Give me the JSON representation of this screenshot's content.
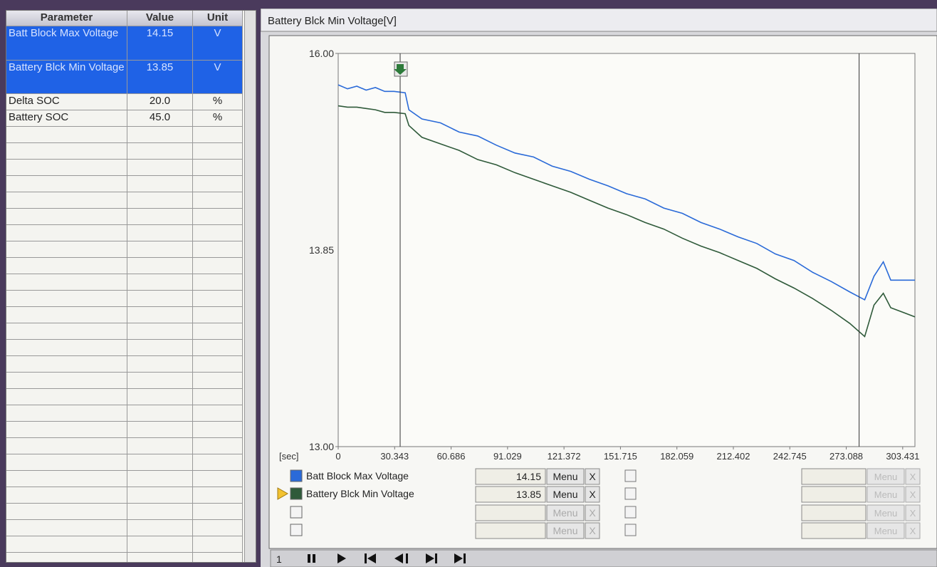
{
  "table": {
    "headers": [
      "Parameter",
      "Value",
      "Unit"
    ],
    "rows": [
      [
        "Batt Block Max Voltage",
        "14.15",
        "V"
      ],
      [
        "Battery Blck Min Voltage",
        "13.85",
        "V"
      ],
      [
        "Delta SOC",
        "20.0",
        "%"
      ],
      [
        "Battery SOC",
        "45.0",
        "%"
      ]
    ]
  },
  "ui": {
    "menu": "Menu",
    "close": "X",
    "frame_number": "1"
  },
  "chart_data": {
    "type": "line",
    "title": "Battery Blck Min Voltage[V]",
    "x_label": "[sec]",
    "xlim": [
      0,
      310
    ],
    "xticks": [
      0,
      30.343,
      60.686,
      91.029,
      121.372,
      151.715,
      182.059,
      212.402,
      242.745,
      273.088,
      303.431
    ],
    "ylim": [
      13,
      16
    ],
    "yticks": [
      {
        "value": 16,
        "label": "16.00"
      },
      {
        "value": 13,
        "label": "13.00"
      }
    ],
    "y_mid_label": "13.85",
    "cursors": [
      33.3,
      280
    ],
    "grid": false,
    "x": [
      0,
      5,
      10,
      15,
      20,
      25,
      30,
      36,
      38,
      45,
      55,
      65,
      75,
      85,
      95,
      105,
      115,
      125,
      135,
      145,
      155,
      165,
      175,
      185,
      195,
      205,
      215,
      225,
      235,
      245,
      255,
      265,
      275,
      283,
      288,
      293,
      297,
      310
    ],
    "series": [
      {
        "name": "Batt Block Max Voltage",
        "color": "#2a6ad8",
        "readout": 14.15,
        "values": [
          15.76,
          15.73,
          15.75,
          15.72,
          15.74,
          15.71,
          15.71,
          15.7,
          15.57,
          15.5,
          15.47,
          15.4,
          15.37,
          15.3,
          15.24,
          15.21,
          15.14,
          15.1,
          15.04,
          14.99,
          14.93,
          14.89,
          14.82,
          14.78,
          14.71,
          14.66,
          14.6,
          14.55,
          14.47,
          14.42,
          14.33,
          14.26,
          14.18,
          14.12,
          14.3,
          14.41,
          14.27,
          14.27
        ]
      },
      {
        "name": "Battery Blck Min Voltage",
        "color": "#2f5a3a",
        "readout": 13.85,
        "values": [
          15.6,
          15.59,
          15.59,
          15.58,
          15.57,
          15.55,
          15.55,
          15.54,
          15.45,
          15.36,
          15.31,
          15.26,
          15.19,
          15.15,
          15.09,
          15.04,
          14.99,
          14.94,
          14.88,
          14.82,
          14.77,
          14.71,
          14.66,
          14.59,
          14.53,
          14.48,
          14.42,
          14.36,
          14.28,
          14.21,
          14.13,
          14.04,
          13.94,
          13.84,
          14.08,
          14.17,
          14.06,
          13.99
        ]
      }
    ]
  }
}
